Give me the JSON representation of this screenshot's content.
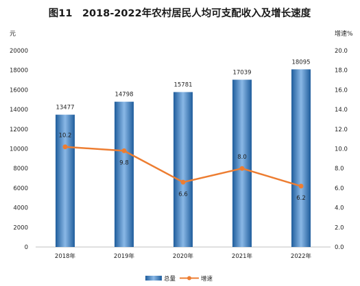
{
  "chart_data": {
    "type": "bar",
    "title": "图11　2018-2022年农村居民人均可支配收入及增长速度",
    "categories": [
      "2018年",
      "2019年",
      "2020年",
      "2021年",
      "2022年"
    ],
    "series": [
      {
        "name": "总量",
        "type": "bar",
        "axis": "left",
        "values": [
          13477,
          14798,
          15781,
          17039,
          18095
        ],
        "labels": [
          "13477",
          "14798",
          "15781",
          "17039",
          "18095"
        ],
        "color": "#2e75b6"
      },
      {
        "name": "增速",
        "type": "line",
        "axis": "right",
        "values": [
          10.2,
          9.8,
          6.6,
          8.0,
          6.2
        ],
        "labels": [
          "10.2",
          "9.8",
          "6.6",
          "8.0",
          "6.2"
        ],
        "color": "#ed7d31"
      }
    ],
    "y_left": {
      "label": "元",
      "ylim": [
        0,
        20000
      ],
      "ticks": [
        "0",
        "2000",
        "4000",
        "6000",
        "8000",
        "10000",
        "12000",
        "14000",
        "16000",
        "18000",
        "20000"
      ]
    },
    "y_right": {
      "label": "增速%",
      "ylim": [
        0,
        20
      ],
      "ticks": [
        "0.0",
        "2.0",
        "4.0",
        "6.0",
        "8.0",
        "10.0",
        "12.0",
        "14.0",
        "16.0",
        "18.0",
        "20.0"
      ]
    },
    "grid": false,
    "legend": {
      "position": "bottom",
      "entries": [
        "总量",
        "增速"
      ]
    }
  }
}
